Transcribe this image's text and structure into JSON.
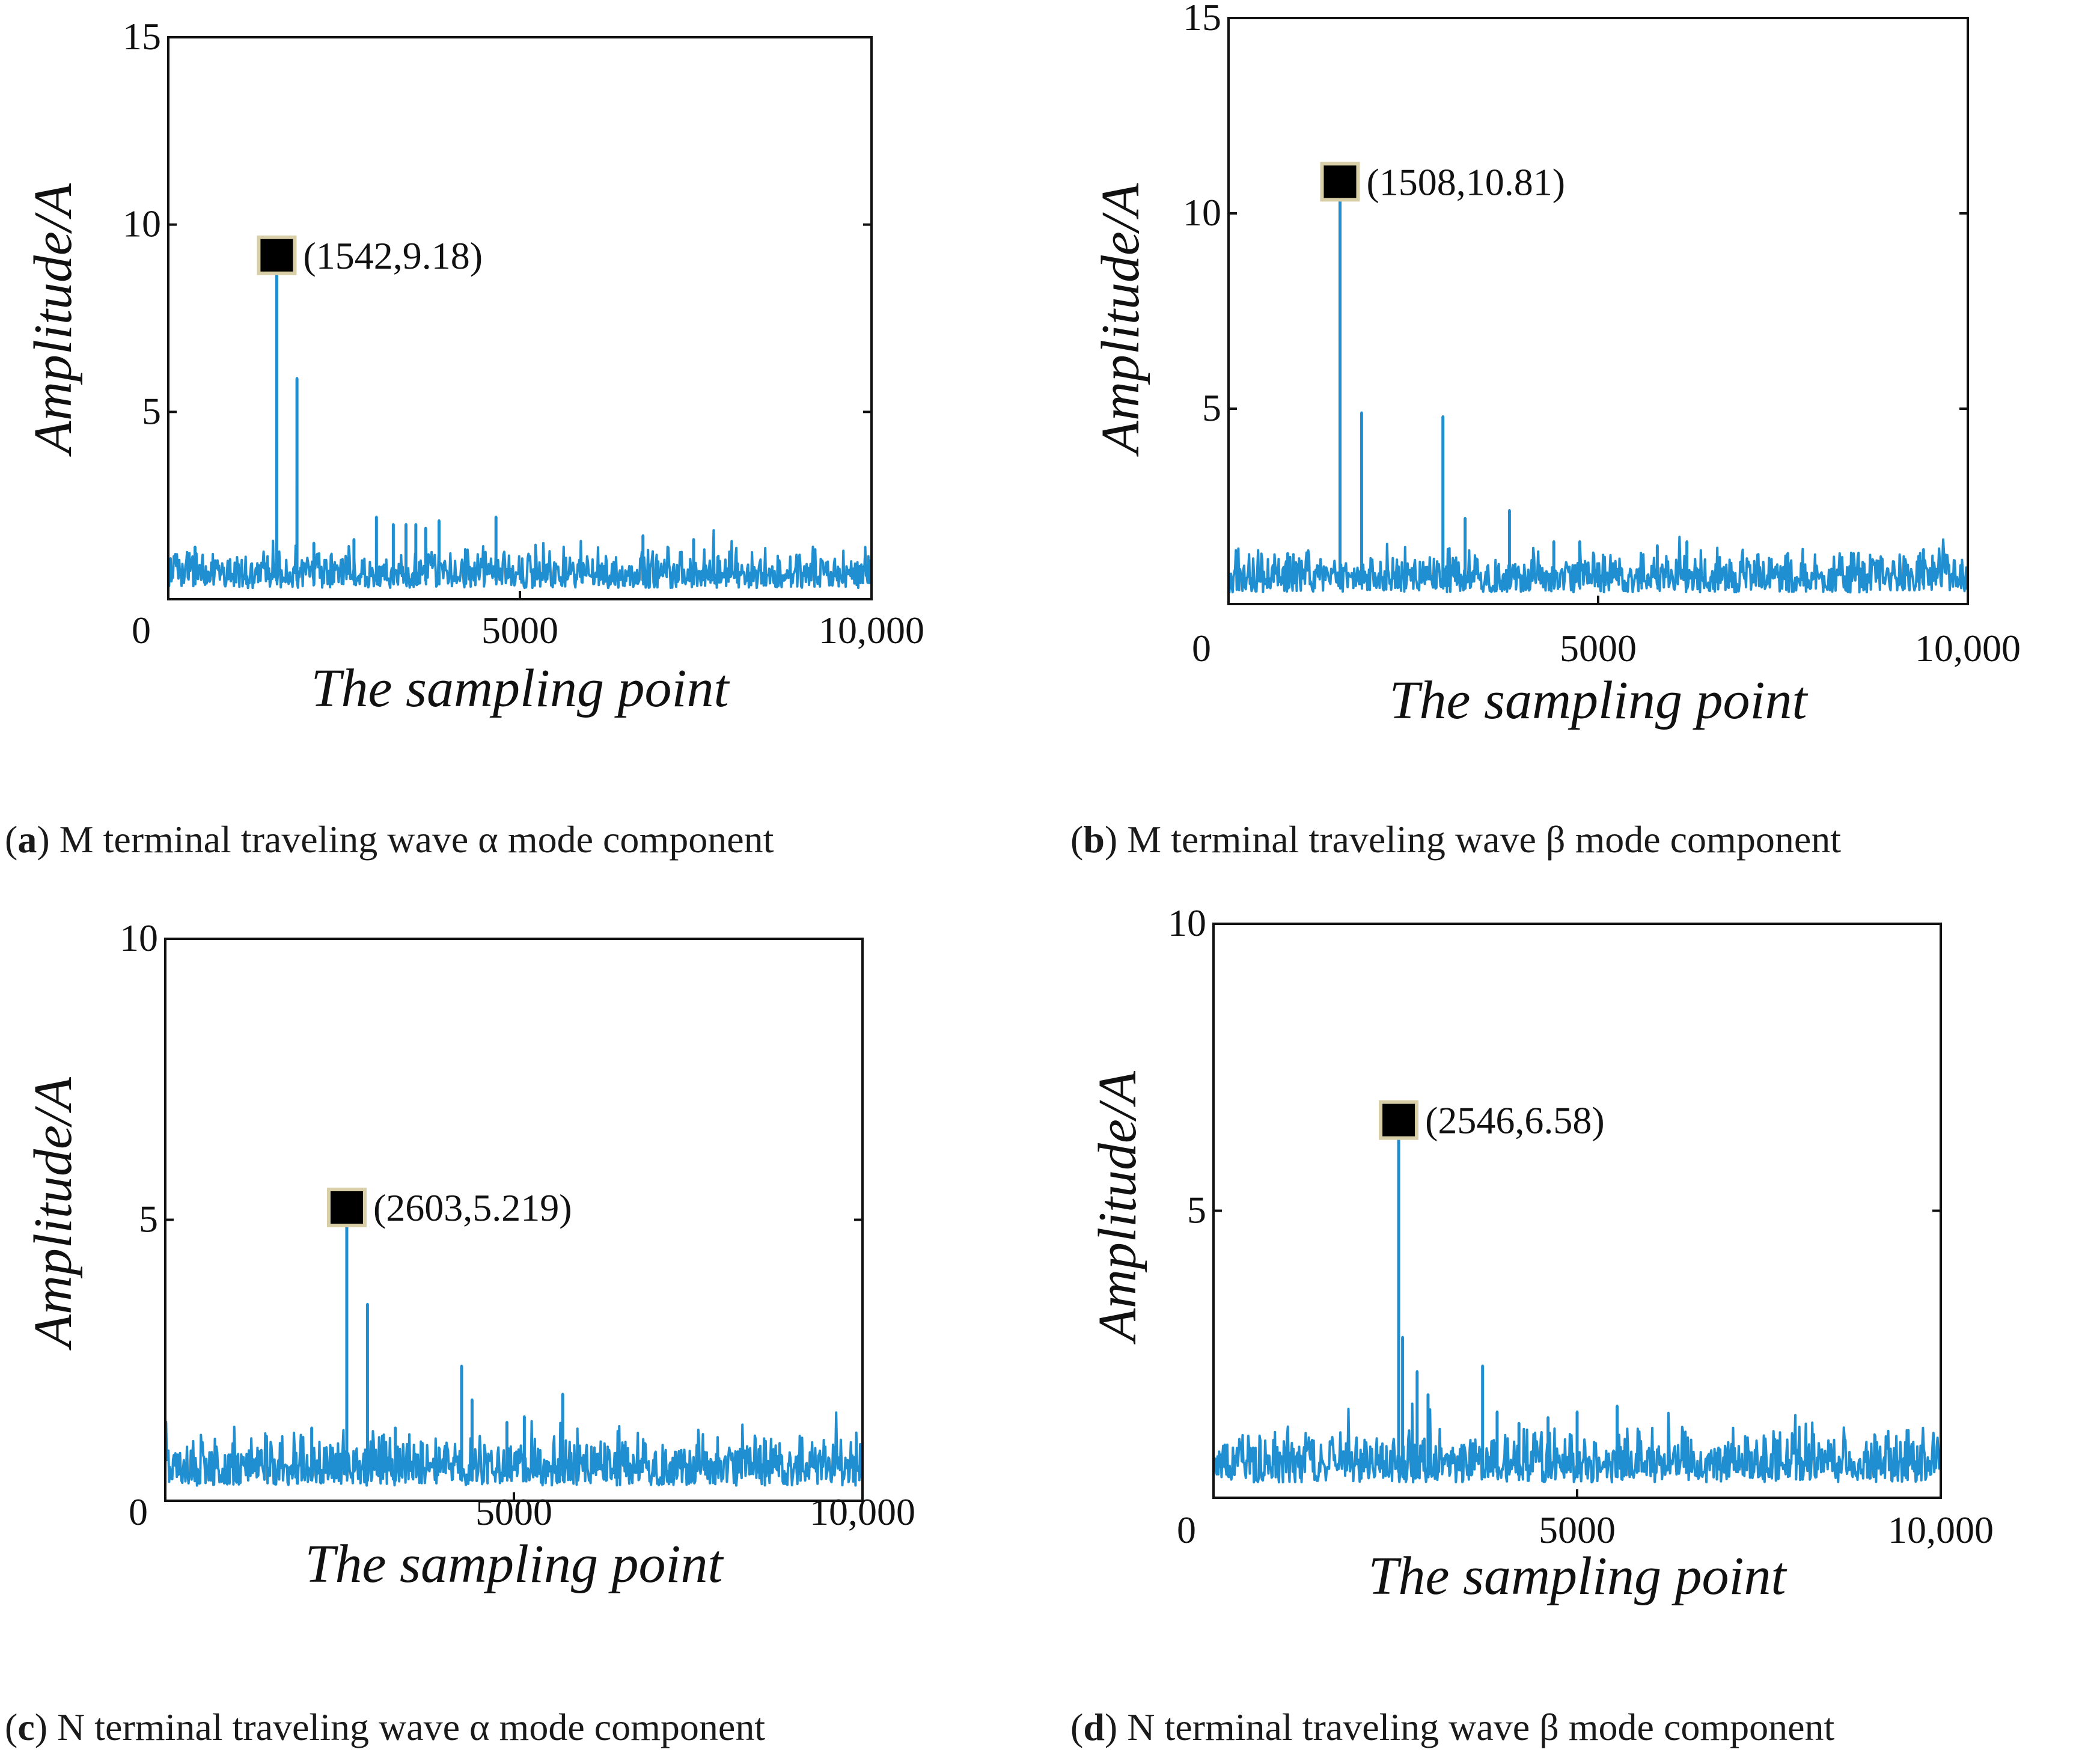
{
  "chart_data": [
    {
      "id": "a",
      "type": "line",
      "caption_letter": "a",
      "caption_text": "M terminal traveling wave α mode component",
      "xlabel": "The sampling point",
      "ylabel": "Amplitude/A",
      "xlim": [
        0,
        10000
      ],
      "ylim": [
        0,
        15
      ],
      "xticks": [
        "0",
        "5000",
        "10,000"
      ],
      "yticks": [
        "5",
        "10",
        "15"
      ],
      "ytick_values": [
        5,
        10,
        15
      ],
      "series_color": "#1f8fd1",
      "spikes": [
        {
          "x": 1542,
          "y": 9.18
        },
        {
          "x": 1830,
          "y": 5.9
        },
        {
          "x": 2640,
          "y": 1.6
        },
        {
          "x": 2960,
          "y": 2.2
        },
        {
          "x": 3200,
          "y": 2.0
        },
        {
          "x": 3380,
          "y": 2.0
        },
        {
          "x": 3520,
          "y": 2.0
        },
        {
          "x": 3660,
          "y": 1.9
        },
        {
          "x": 3850,
          "y": 2.1
        },
        {
          "x": 4660,
          "y": 2.2
        },
        {
          "x": 6750,
          "y": 1.7
        },
        {
          "x": 7470,
          "y": 1.6
        },
        {
          "x": 380,
          "y": 1.4
        },
        {
          "x": 2070,
          "y": 1.5
        }
      ],
      "noise_base": 0.5,
      "noise_amp": 0.8,
      "marker": {
        "x": 1542,
        "y": 9.18,
        "label": "(1542,9.18)"
      }
    },
    {
      "id": "b",
      "type": "line",
      "caption_letter": "b",
      "caption_text": "M terminal traveling wave β mode component",
      "xlabel": "The sampling point",
      "ylabel": "Amplitude/A",
      "xlim": [
        0,
        10000
      ],
      "ylim": [
        0,
        15
      ],
      "xticks": [
        "0",
        "5000",
        "10,000"
      ],
      "yticks": [
        "5",
        "10",
        "15"
      ],
      "ytick_values": [
        5,
        10,
        15
      ],
      "series_color": "#1f8fd1",
      "spikes": [
        {
          "x": 1508,
          "y": 10.81
        },
        {
          "x": 1800,
          "y": 4.9
        },
        {
          "x": 2900,
          "y": 4.8
        },
        {
          "x": 3200,
          "y": 2.2
        },
        {
          "x": 3800,
          "y": 2.4
        },
        {
          "x": 4400,
          "y": 1.6
        },
        {
          "x": 4750,
          "y": 1.6
        },
        {
          "x": 5800,
          "y": 1.5
        },
        {
          "x": 6200,
          "y": 1.6
        },
        {
          "x": 9400,
          "y": 1.4
        },
        {
          "x": 800,
          "y": 1.3
        }
      ],
      "noise_base": 0.5,
      "noise_amp": 0.8,
      "marker": {
        "x": 1508,
        "y": 10.81,
        "label": "(1508,10.81)"
      }
    },
    {
      "id": "c",
      "type": "line",
      "caption_letter": "c",
      "caption_text": "N terminal traveling wave α mode component",
      "xlabel": "The sampling point",
      "ylabel": "Amplitude/A",
      "xlim": [
        0,
        10000
      ],
      "ylim": [
        0,
        10
      ],
      "xticks": [
        "0",
        "5000",
        "10,000"
      ],
      "yticks": [
        "5",
        "10"
      ],
      "ytick_values": [
        5,
        10
      ],
      "series_color": "#1f8fd1",
      "spikes": [
        {
          "x": 2603,
          "y": 5.219
        },
        {
          "x": 2900,
          "y": 3.5
        },
        {
          "x": 4250,
          "y": 2.4
        },
        {
          "x": 4400,
          "y": 1.8
        },
        {
          "x": 5150,
          "y": 1.5
        },
        {
          "x": 5700,
          "y": 1.9
        },
        {
          "x": 4900,
          "y": 1.4
        },
        {
          "x": 2100,
          "y": 1.3
        },
        {
          "x": 3300,
          "y": 1.3
        }
      ],
      "noise_base": 0.45,
      "noise_amp": 0.7,
      "marker": {
        "x": 2603,
        "y": 5.219,
        "label": "(2603,5.219)"
      }
    },
    {
      "id": "d",
      "type": "line",
      "caption_letter": "d",
      "caption_text": "N terminal traveling wave β mode component",
      "xlabel": "The sampling point",
      "ylabel": "Amplitude/A",
      "xlim": [
        0,
        10000
      ],
      "ylim": [
        0,
        10
      ],
      "xticks": [
        "0",
        "5000",
        "10,000"
      ],
      "yticks": [
        "5",
        "10"
      ],
      "ytick_values": [
        5,
        10
      ],
      "series_color": "#1f8fd1",
      "spikes": [
        {
          "x": 2546,
          "y": 6.58
        },
        {
          "x": 2600,
          "y": 2.8
        },
        {
          "x": 2800,
          "y": 2.2
        },
        {
          "x": 2950,
          "y": 1.8
        },
        {
          "x": 3700,
          "y": 2.3
        },
        {
          "x": 3900,
          "y": 1.5
        },
        {
          "x": 4600,
          "y": 1.4
        },
        {
          "x": 5000,
          "y": 1.5
        },
        {
          "x": 5550,
          "y": 1.6
        },
        {
          "x": 4200,
          "y": 1.3
        }
      ],
      "noise_base": 0.45,
      "noise_amp": 0.7,
      "marker": {
        "x": 2546,
        "y": 6.58,
        "label": "(2546,6.58)"
      }
    }
  ]
}
